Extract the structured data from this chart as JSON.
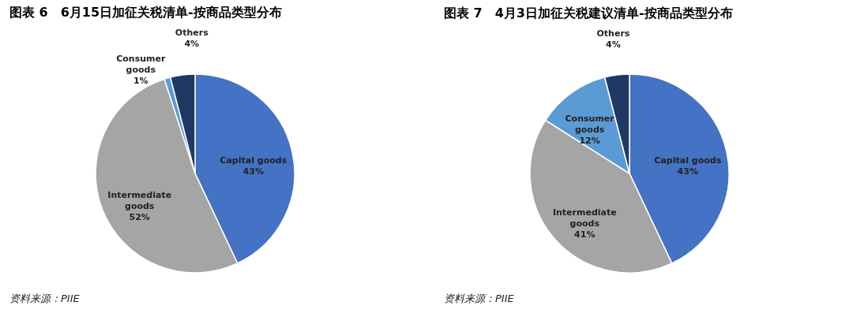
{
  "chart_data": [
    {
      "type": "pie",
      "title": "图表 6　6月15日加征关税清单-按商品类型分布",
      "categories": [
        "Capital goods",
        "Intermediate goods",
        "Consumer goods",
        "Others"
      ],
      "values": [
        43,
        52,
        1,
        4
      ],
      "value_labels": [
        "43%",
        "52%",
        "1%",
        "4%"
      ],
      "colors": [
        "#4472c4",
        "#a5a5a5",
        "#5b9bd5",
        "#203864"
      ],
      "data_labels": true,
      "legend": false,
      "annotations": [
        "资料来源：PIIE"
      ]
    },
    {
      "type": "pie",
      "title": "图表 7　4月3日加征关税建议清单-按商品类型分布",
      "categories": [
        "Capital goods",
        "Intermediate goods",
        "Consumer goods",
        "Others"
      ],
      "values": [
        43,
        41,
        12,
        4
      ],
      "value_labels": [
        "43%",
        "41%",
        "12%",
        "4%"
      ],
      "colors": [
        "#4472c4",
        "#a5a5a5",
        "#5b9bd5",
        "#203864"
      ],
      "data_labels": true,
      "legend": false,
      "annotations": [
        "资料来源：PIIE"
      ]
    }
  ]
}
